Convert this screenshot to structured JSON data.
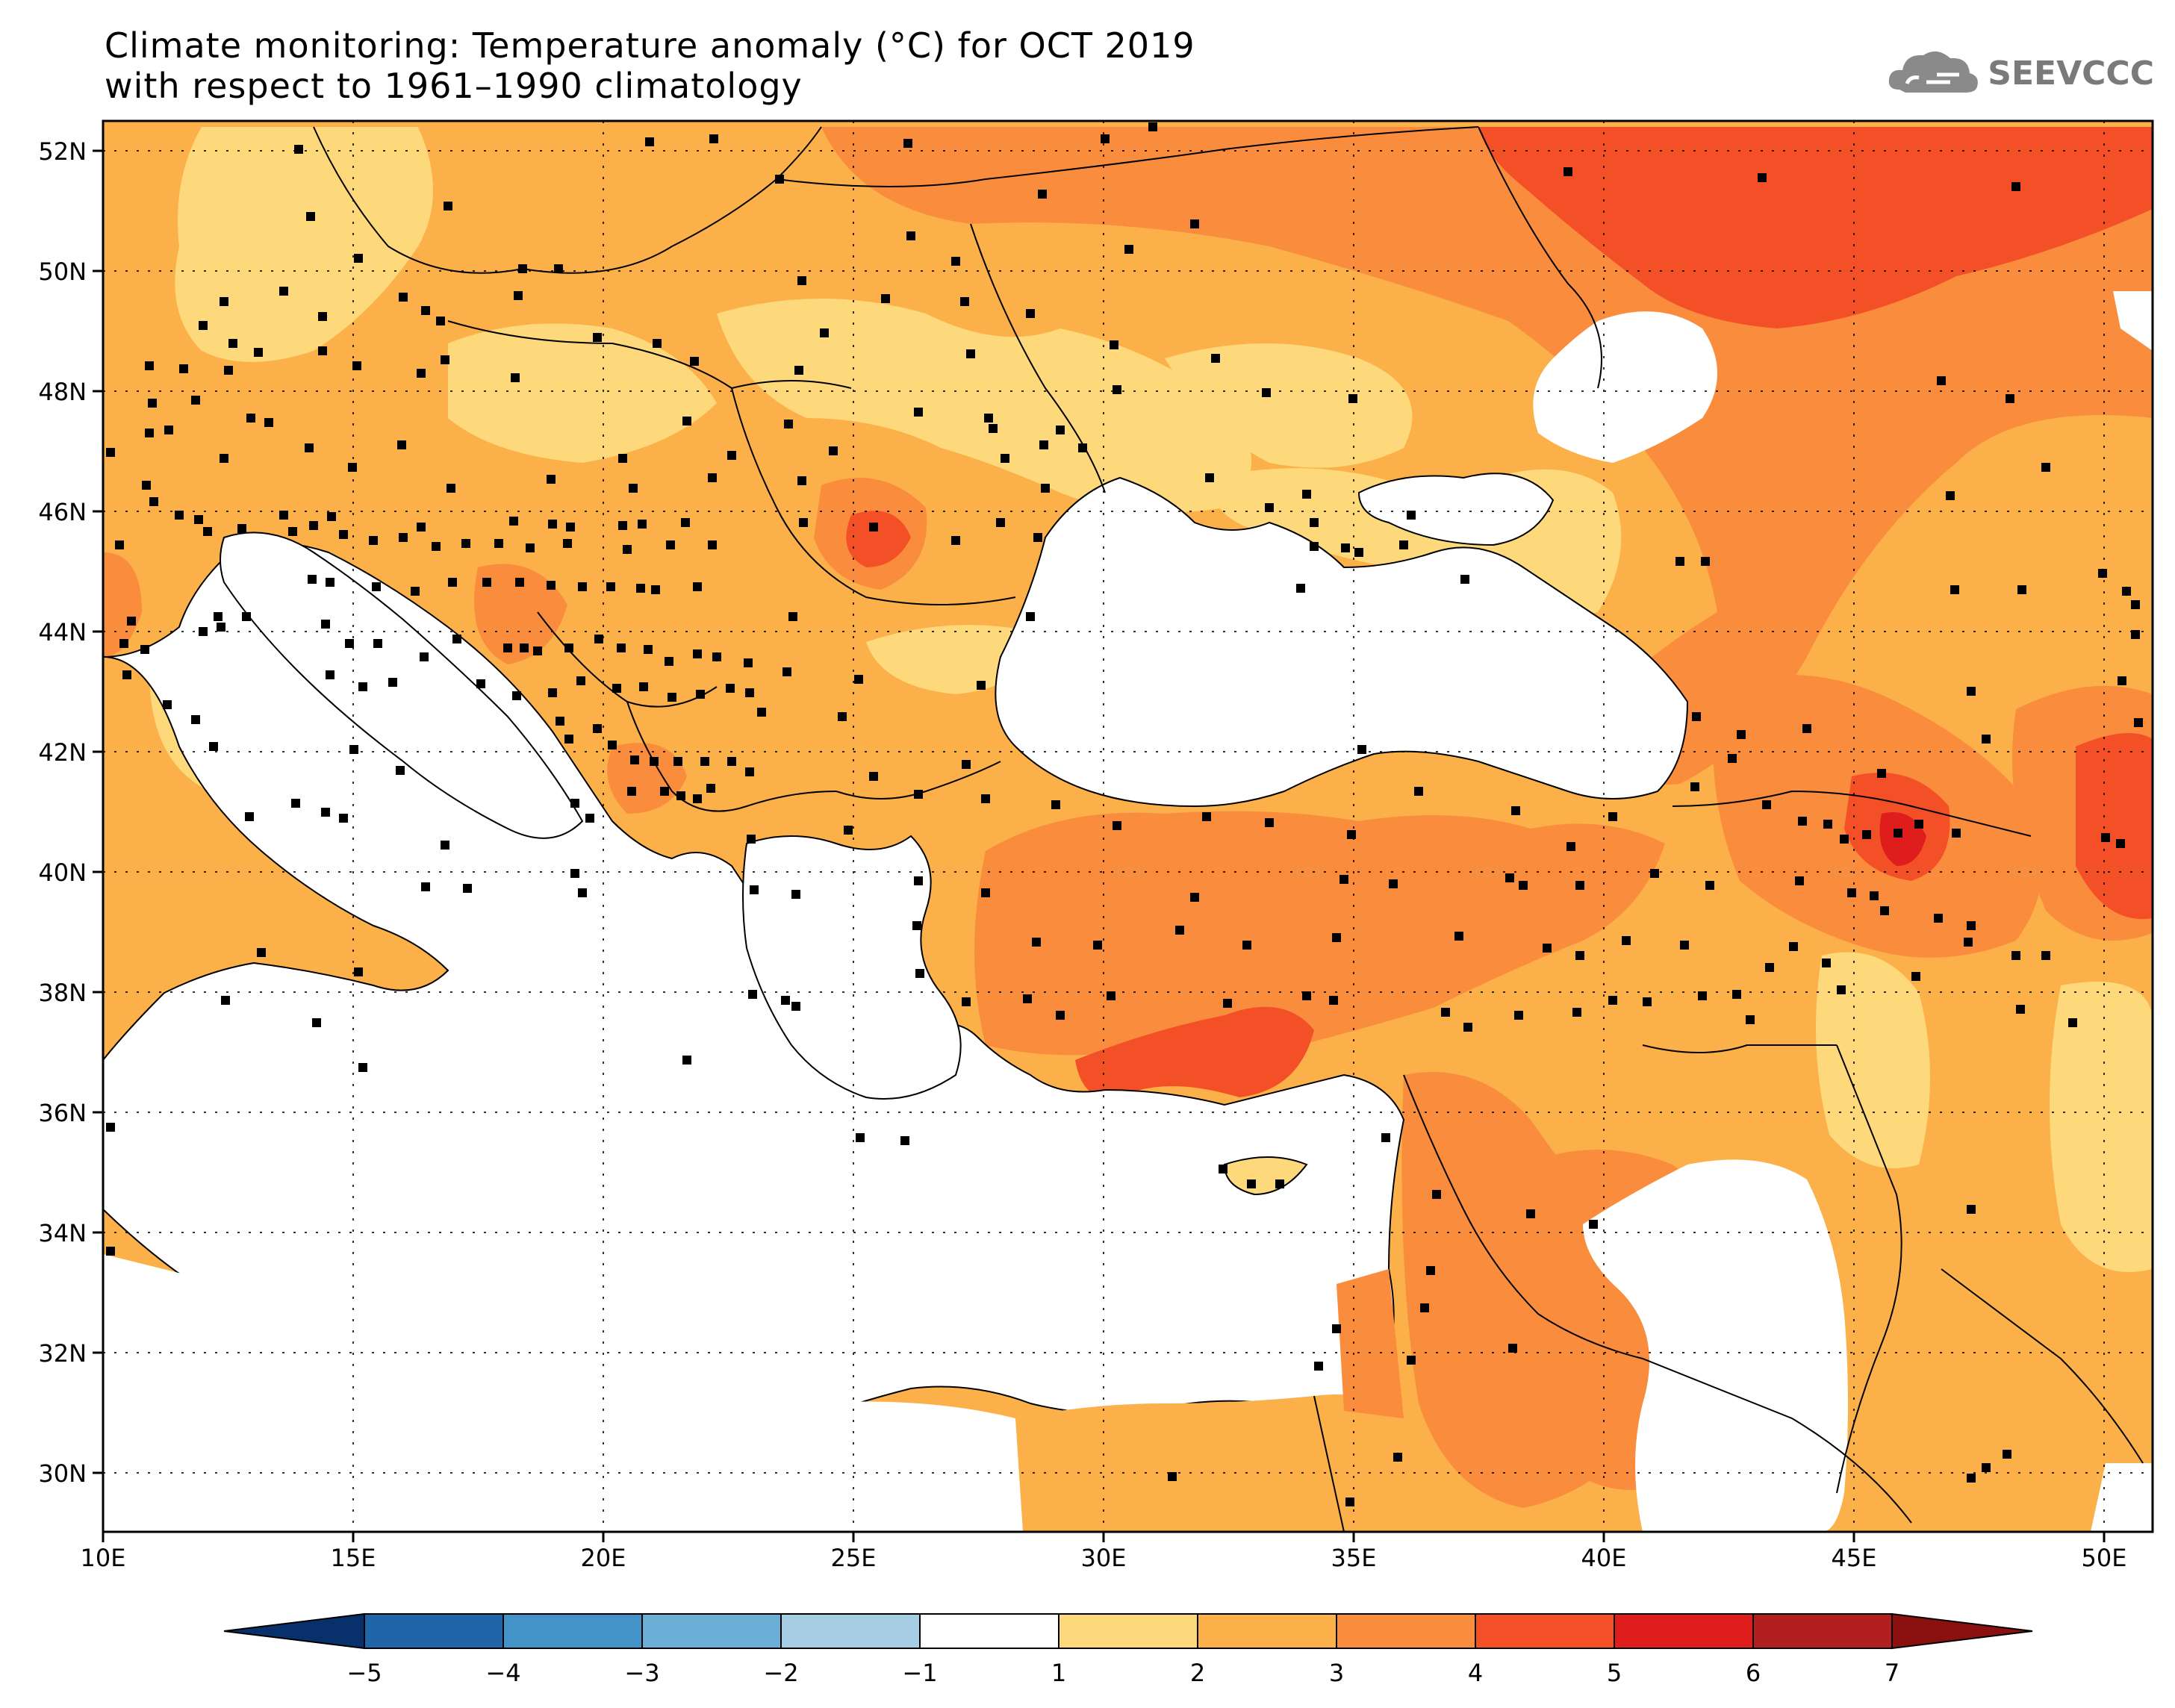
{
  "title": {
    "line1": "Climate monitoring: Temperature anomaly (°C) for OCT 2019",
    "line2": "with respect to 1961–1990 climatology"
  },
  "logo": {
    "text": "SEEVCCC",
    "icon": "cloud-icon"
  },
  "map": {
    "lon_range": [
      10,
      51
    ],
    "lat_range": [
      29,
      52.5
    ],
    "lon_ticks": [
      "10E",
      "15E",
      "20E",
      "25E",
      "30E",
      "35E",
      "40E",
      "45E",
      "50E"
    ],
    "lat_ticks": [
      "52N",
      "50N",
      "48N",
      "46N",
      "44N",
      "42N",
      "40N",
      "38N",
      "36N",
      "34N",
      "32N",
      "30N"
    ],
    "grid": true,
    "colors": {
      "land_1_2": "#fdd97b",
      "land_2_3": "#fbb04a",
      "land_3_4": "#f98d3d",
      "land_4_5": "#f35028",
      "land_5_6": "#df1d1d",
      "sea": "#ffffff",
      "station": "#000000"
    }
  },
  "colorbar": {
    "labels": [
      "−5",
      "−4",
      "−3",
      "−2",
      "−1",
      "1",
      "2",
      "3",
      "4",
      "5",
      "6",
      "7"
    ],
    "colors": [
      "#08306b",
      "#1f65a8",
      "#4393c8",
      "#6baed6",
      "#a6cde3",
      "#ffffff",
      "#fdd97b",
      "#fbb04a",
      "#f98d3d",
      "#f35028",
      "#df1d1d",
      "#b21f1f",
      "#8b1010"
    ]
  }
}
